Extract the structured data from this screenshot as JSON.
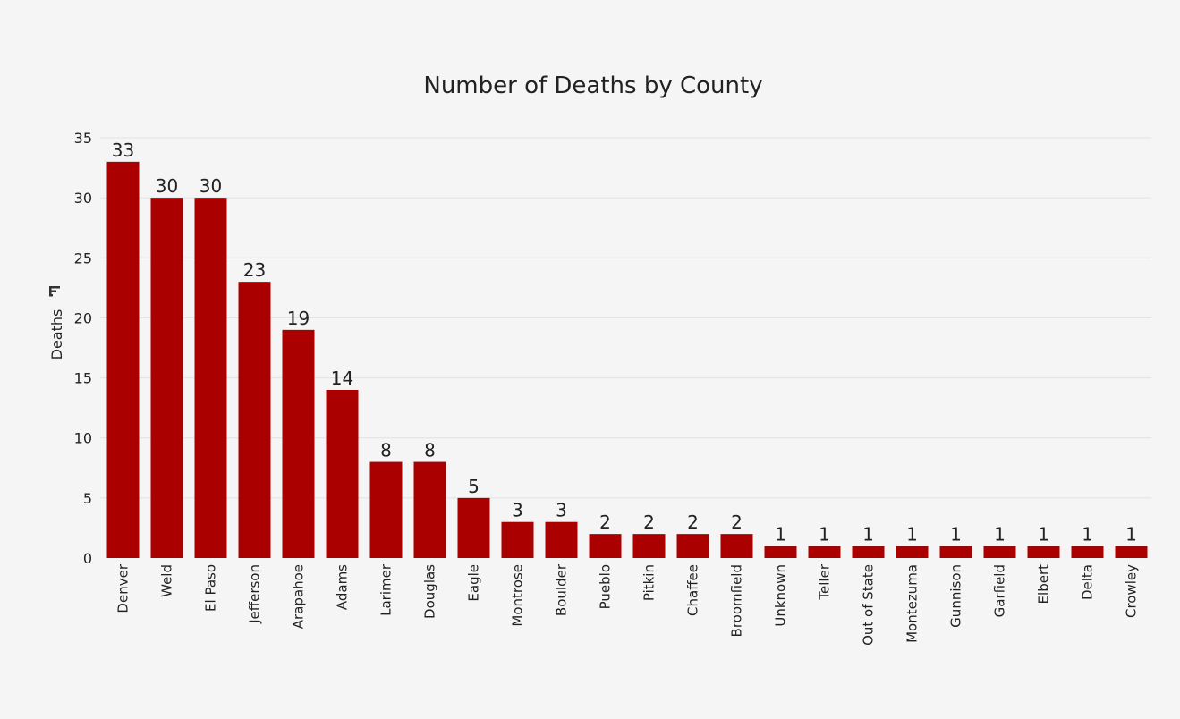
{
  "chart_data": {
    "type": "bar",
    "title": "Number of Deaths by County",
    "xlabel": "",
    "ylabel": "Deaths",
    "ylim": [
      0,
      35
    ],
    "yticks": [
      0,
      5,
      10,
      15,
      20,
      25,
      30,
      35
    ],
    "grid": true,
    "legend": "none",
    "bar_color": "#aa0000",
    "sort_icon": "sort-descending-icon",
    "categories": [
      "Denver",
      "Weld",
      "El Paso",
      "Jefferson",
      "Arapahoe",
      "Adams",
      "Larimer",
      "Douglas",
      "Eagle",
      "Montrose",
      "Boulder",
      "Pueblo",
      "Pitkin",
      "Chaffee",
      "Broomfield",
      "Unknown",
      "Teller",
      "Out of State",
      "Montezuma",
      "Gunnison",
      "Garfield",
      "Elbert",
      "Delta",
      "Crowley"
    ],
    "values": [
      33,
      30,
      30,
      23,
      19,
      14,
      8,
      8,
      5,
      3,
      3,
      2,
      2,
      2,
      2,
      1,
      1,
      1,
      1,
      1,
      1,
      1,
      1,
      1
    ]
  }
}
